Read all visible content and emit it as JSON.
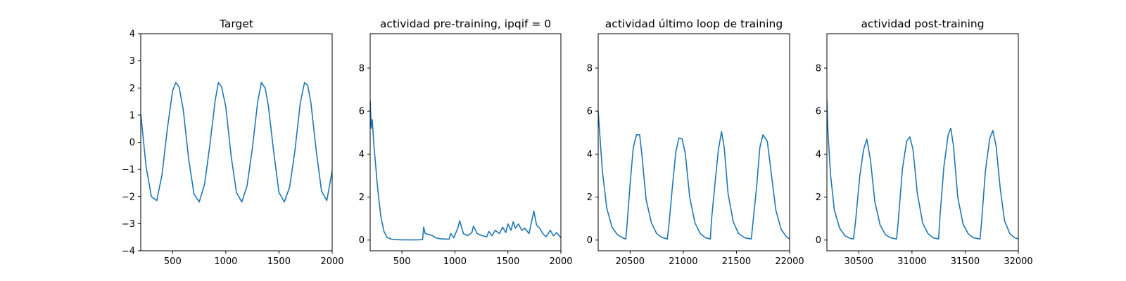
{
  "chart_data": [
    {
      "type": "line",
      "title": "Target",
      "xlabel": "",
      "ylabel": "",
      "xlim": [
        200,
        2000
      ],
      "ylim": [
        -4,
        4
      ],
      "xticks": [
        500,
        1000,
        1500,
        2000
      ],
      "yticks": [
        -4,
        -3,
        -2,
        -1,
        0,
        1,
        2,
        3,
        4
      ],
      "grid": false,
      "series": [
        {
          "color": "#1f77b4",
          "x": [
            200,
            250,
            300,
            350,
            400,
            450,
            500,
            530,
            560,
            600,
            650,
            700,
            750,
            800,
            850,
            900,
            930,
            960,
            1000,
            1050,
            1100,
            1150,
            1200,
            1250,
            1300,
            1335,
            1370,
            1400,
            1450,
            1500,
            1550,
            1600,
            1650,
            1700,
            1740,
            1770,
            1800,
            1850,
            1900,
            1950,
            2000
          ],
          "values": [
            1.05,
            -0.9,
            -2.0,
            -2.15,
            -1.2,
            0.5,
            1.9,
            2.2,
            2.05,
            1.2,
            -0.6,
            -1.9,
            -2.2,
            -1.55,
            -0.1,
            1.55,
            2.2,
            2.05,
            1.3,
            -0.5,
            -1.85,
            -2.2,
            -1.6,
            -0.2,
            1.5,
            2.2,
            2.0,
            1.35,
            -0.35,
            -1.85,
            -2.2,
            -1.65,
            -0.3,
            1.45,
            2.2,
            2.1,
            1.45,
            -0.3,
            -1.8,
            -2.15,
            -1.05
          ]
        }
      ]
    },
    {
      "type": "line",
      "title": "actividad pre-training, ipqif = 0",
      "xlabel": "",
      "ylabel": "",
      "xlim": [
        200,
        2000
      ],
      "ylim": [
        -0.5,
        9.6
      ],
      "xticks": [
        500,
        1000,
        1500,
        2000
      ],
      "yticks": [
        0,
        2,
        4,
        6,
        8
      ],
      "grid": false,
      "series": [
        {
          "color": "#1f77b4",
          "x": [
            200,
            210,
            220,
            235,
            250,
            265,
            280,
            300,
            330,
            360,
            400,
            450,
            500,
            550,
            600,
            650,
            695,
            705,
            720,
            760,
            790,
            820,
            860,
            900,
            945,
            960,
            990,
            1030,
            1045,
            1080,
            1120,
            1160,
            1175,
            1210,
            1260,
            1300,
            1320,
            1350,
            1380,
            1420,
            1450,
            1480,
            1500,
            1530,
            1550,
            1570,
            1600,
            1630,
            1660,
            1700,
            1725,
            1745,
            1770,
            1800,
            1830,
            1860,
            1900,
            1930,
            1960,
            2000
          ],
          "values": [
            6.5,
            5.2,
            5.6,
            4.4,
            3.6,
            2.7,
            2.0,
            1.1,
            0.4,
            0.12,
            0.04,
            0.02,
            0.01,
            0.01,
            0.01,
            0.01,
            0.02,
            0.6,
            0.3,
            0.25,
            0.2,
            0.1,
            0.06,
            0.05,
            0.04,
            0.3,
            0.1,
            0.6,
            0.9,
            0.3,
            0.2,
            0.35,
            0.65,
            0.3,
            0.2,
            0.15,
            0.4,
            0.2,
            0.45,
            0.3,
            0.6,
            0.35,
            0.75,
            0.45,
            0.85,
            0.55,
            0.75,
            0.45,
            0.55,
            0.3,
            0.9,
            1.35,
            0.7,
            0.55,
            0.3,
            0.15,
            0.45,
            0.2,
            0.35,
            0.1
          ]
        }
      ]
    },
    {
      "type": "line",
      "title": "actividad último loop de training",
      "xlabel": "",
      "ylabel": "",
      "xlim": [
        20200,
        22000
      ],
      "ylim": [
        -0.5,
        9.6
      ],
      "xticks": [
        20500,
        21000,
        21500,
        22000
      ],
      "yticks": [
        0,
        2,
        4,
        6,
        8
      ],
      "grid": false,
      "series": [
        {
          "color": "#1f77b4",
          "x": [
            20200,
            20215,
            20240,
            20280,
            20330,
            20380,
            20430,
            20460,
            20470,
            20500,
            20530,
            20560,
            20590,
            20610,
            20650,
            20700,
            20750,
            20800,
            20850,
            20865,
            20900,
            20930,
            20960,
            20990,
            21020,
            21060,
            21110,
            21160,
            21210,
            21255,
            21265,
            21300,
            21330,
            21360,
            21385,
            21420,
            21470,
            21520,
            21580,
            21640,
            21655,
            21690,
            21720,
            21750,
            21790,
            21820,
            21870,
            21920,
            21970,
            22000
          ],
          "values": [
            6.0,
            4.9,
            3.2,
            1.5,
            0.6,
            0.25,
            0.1,
            0.05,
            0.6,
            2.6,
            4.3,
            4.9,
            4.9,
            4.0,
            1.9,
            0.8,
            0.3,
            0.12,
            0.05,
            0.7,
            2.6,
            4.1,
            4.75,
            4.7,
            4.0,
            2.0,
            0.8,
            0.3,
            0.1,
            0.05,
            0.9,
            2.7,
            4.2,
            5.05,
            4.3,
            2.2,
            0.85,
            0.3,
            0.1,
            0.05,
            0.8,
            2.5,
            4.3,
            4.9,
            4.6,
            3.4,
            1.4,
            0.5,
            0.15,
            0.05
          ]
        }
      ]
    },
    {
      "type": "line",
      "title": "actividad post-training",
      "xlabel": "",
      "ylabel": "",
      "xlim": [
        30200,
        32000
      ],
      "ylim": [
        -0.5,
        9.6
      ],
      "xticks": [
        30500,
        31000,
        31500,
        32000
      ],
      "yticks": [
        0,
        2,
        4,
        6,
        8
      ],
      "grid": false,
      "series": [
        {
          "color": "#1f77b4",
          "x": [
            30200,
            30210,
            30235,
            30270,
            30320,
            30370,
            30420,
            30450,
            30470,
            30510,
            30545,
            30575,
            30610,
            30650,
            30700,
            30750,
            30800,
            30855,
            30870,
            30910,
            30950,
            30980,
            31010,
            31050,
            31100,
            31150,
            31200,
            31250,
            31265,
            31300,
            31340,
            31365,
            31390,
            31430,
            31480,
            31530,
            31580,
            31640,
            31655,
            31690,
            31730,
            31760,
            31790,
            31830,
            31870,
            31920,
            31960,
            32000
          ],
          "values": [
            6.5,
            5.0,
            3.0,
            1.4,
            0.55,
            0.2,
            0.08,
            0.05,
            0.9,
            3.0,
            4.2,
            4.7,
            3.7,
            1.8,
            0.7,
            0.25,
            0.1,
            0.05,
            0.8,
            3.3,
            4.6,
            4.8,
            4.2,
            2.2,
            0.8,
            0.3,
            0.1,
            0.05,
            1.2,
            3.4,
            4.9,
            5.2,
            4.4,
            2.0,
            0.75,
            0.28,
            0.1,
            0.05,
            0.9,
            3.2,
            4.7,
            5.1,
            4.4,
            2.4,
            0.9,
            0.3,
            0.12,
            0.05
          ]
        }
      ]
    }
  ]
}
